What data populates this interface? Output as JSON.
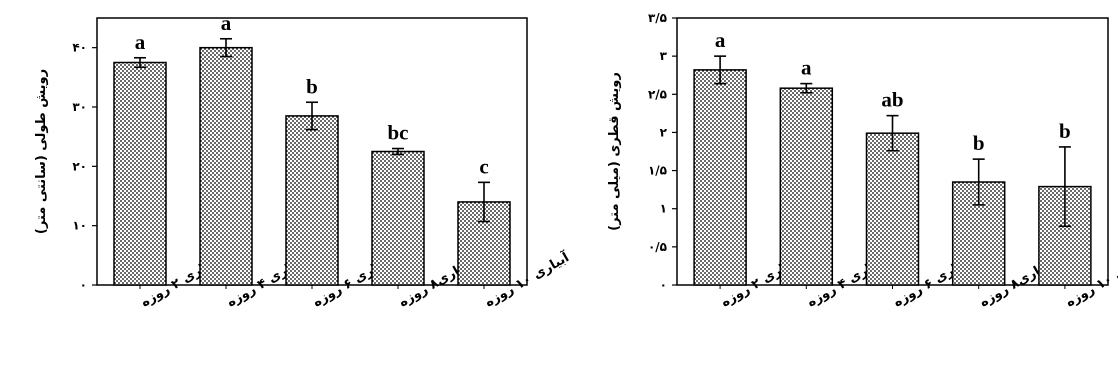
{
  "chart_data": [
    {
      "type": "bar",
      "categories": [
        "آبیاری ۲ روزه",
        "آبیاری ۴ روزه",
        "آبیاری ۶ روزه",
        "آبیاری۸ روزه",
        "آبیاری ۱۰ روزه"
      ],
      "values": [
        37.5,
        40,
        28.5,
        22.5,
        14
      ],
      "errors": [
        0.8,
        1.5,
        2.3,
        0.5,
        3.3
      ],
      "significance_letters": [
        "a",
        "a",
        "b",
        "bc",
        "c"
      ],
      "ylabel": "رویش طولی (سانتی متر)",
      "ylim": [
        0,
        45
      ],
      "yticks": [
        0,
        10,
        20,
        30,
        40
      ],
      "ytick_labels": [
        "۰",
        "۱۰",
        "۲۰",
        "۳۰",
        "۴۰"
      ],
      "grid": false,
      "bar_pattern": "dotted",
      "colors": {
        "bar_fill": "#ffffff",
        "dots": "#000000",
        "frame": "#000000"
      }
    },
    {
      "type": "bar",
      "categories": [
        "آبیاری ۲ روزه",
        "آبیاری ۴ روزه",
        "آبیاری ۶ روزه",
        "آبیاری۸ روزه",
        "آبیاری ۱۰ روزه"
      ],
      "values": [
        2.82,
        2.58,
        1.99,
        1.35,
        1.29
      ],
      "errors": [
        0.18,
        0.06,
        0.23,
        0.3,
        0.52
      ],
      "significance_letters": [
        "a",
        "a",
        "ab",
        "b",
        "b"
      ],
      "ylabel": "رویش قطری (میلی متر)",
      "ylim": [
        0,
        3.5
      ],
      "yticks": [
        0,
        0.5,
        1,
        1.5,
        2,
        2.5,
        3,
        3.5
      ],
      "ytick_labels": [
        "۰",
        "۰/۵",
        "۱",
        "۱/۵",
        "۲",
        "۲/۵",
        "۳",
        "۳/۵"
      ],
      "grid": false,
      "bar_pattern": "dotted",
      "colors": {
        "bar_fill": "#ffffff",
        "dots": "#000000",
        "frame": "#000000"
      }
    }
  ]
}
